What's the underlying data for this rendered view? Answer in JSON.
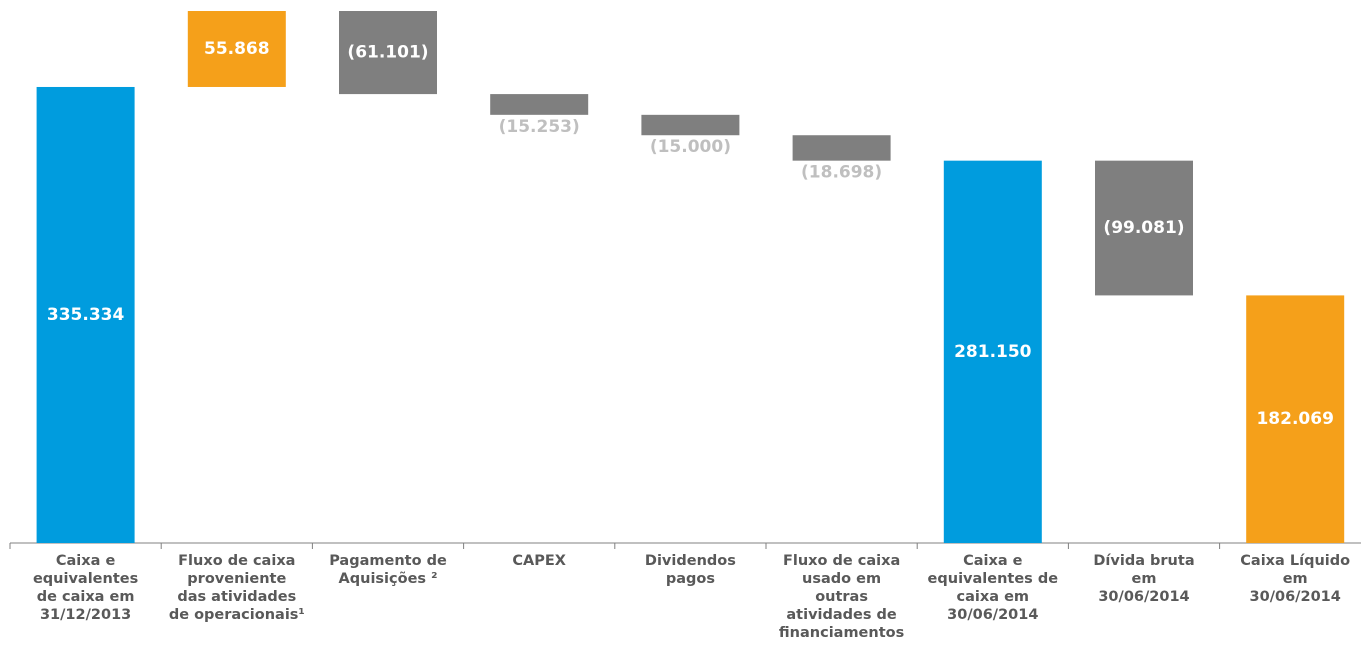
{
  "chart_data": {
    "type": "waterfall",
    "categories": [
      "Caixa e\nequivalentes\nde caixa em\n31/12/2013",
      "Fluxo de caixa\nproveniente\ndas atividades\nde operacionais¹",
      "Pagamento de\nAquisições ²",
      "CAPEX",
      "Dividendos\npagos",
      "Fluxo de caixa\nusado em\noutras\natividades de\nfinanciamentos",
      "Caixa e\nequivalentes de\ncaixa em\n30/06/2014",
      "Dívida bruta\nem\n30/06/2014",
      "Caixa Líquido\nem\n30/06/2014"
    ],
    "measures": [
      "absolute",
      "relative",
      "relative",
      "relative",
      "relative",
      "relative",
      "total",
      "relative",
      "total"
    ],
    "values": [
      335334,
      55868,
      -61101,
      -15253,
      -15000,
      -18698,
      281150,
      -99081,
      182069
    ],
    "value_labels": [
      "335.334",
      "55.868",
      "(61.101)",
      "(15.253)",
      "(15.000)",
      "(18.698)",
      "281.150",
      "(99.081)",
      "182.069"
    ],
    "colors": [
      "#009cde",
      "#f5a01a",
      "#7f7f7f",
      "#7f7f7f",
      "#7f7f7f",
      "#7f7f7f",
      "#009cde",
      "#7f7f7f",
      "#f5a01a"
    ]
  }
}
